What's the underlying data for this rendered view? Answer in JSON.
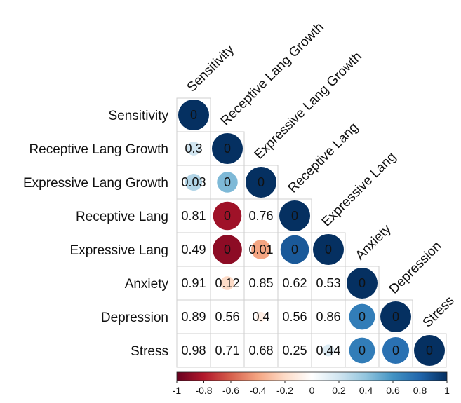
{
  "chart_data": {
    "type": "heatmap",
    "style": "lower-triangle correlation plot; circles for values near zero, numbers for larger values",
    "variables": [
      "Sensitivity",
      "Receptive Lang Growth",
      "Expressive Lang Growth",
      "Receptive Lang",
      "Expressive Lang",
      "Anxiety",
      "Depression",
      "Stress"
    ],
    "cells": [
      {
        "row": 0,
        "col": 0,
        "label": "0",
        "display": "circle",
        "value": 1.0
      },
      {
        "row": 1,
        "col": 0,
        "label": "0.3",
        "display": "circle-text",
        "value": 0.2
      },
      {
        "row": 1,
        "col": 1,
        "label": "0",
        "display": "circle",
        "value": 1.0
      },
      {
        "row": 2,
        "col": 0,
        "label": "0.03",
        "display": "circle-text",
        "value": 0.3
      },
      {
        "row": 2,
        "col": 1,
        "label": "0",
        "display": "circle",
        "value": 0.45
      },
      {
        "row": 2,
        "col": 2,
        "label": "0",
        "display": "circle",
        "value": 1.0
      },
      {
        "row": 3,
        "col": 0,
        "label": "0.81",
        "display": "text"
      },
      {
        "row": 3,
        "col": 1,
        "label": "0",
        "display": "circle",
        "value": -0.85
      },
      {
        "row": 3,
        "col": 2,
        "label": "0.76",
        "display": "text"
      },
      {
        "row": 3,
        "col": 3,
        "label": "0",
        "display": "circle",
        "value": 1.0
      },
      {
        "row": 4,
        "col": 0,
        "label": "0.49",
        "display": "text"
      },
      {
        "row": 4,
        "col": 1,
        "label": "0",
        "display": "circle",
        "value": -0.9
      },
      {
        "row": 4,
        "col": 2,
        "label": "0.01",
        "display": "circle-text",
        "value": -0.4
      },
      {
        "row": 4,
        "col": 3,
        "label": "0",
        "display": "circle",
        "value": 0.85
      },
      {
        "row": 4,
        "col": 4,
        "label": "0",
        "display": "circle",
        "value": 1.0
      },
      {
        "row": 5,
        "col": 0,
        "label": "0.91",
        "display": "text"
      },
      {
        "row": 5,
        "col": 1,
        "label": "0.12",
        "display": "circle-text",
        "value": -0.2
      },
      {
        "row": 5,
        "col": 2,
        "label": "0.85",
        "display": "text"
      },
      {
        "row": 5,
        "col": 3,
        "label": "0.62",
        "display": "text"
      },
      {
        "row": 5,
        "col": 4,
        "label": "0.53",
        "display": "text"
      },
      {
        "row": 5,
        "col": 5,
        "label": "0",
        "display": "circle",
        "value": 1.0
      },
      {
        "row": 6,
        "col": 0,
        "label": "0.89",
        "display": "text"
      },
      {
        "row": 6,
        "col": 1,
        "label": "0.56",
        "display": "text"
      },
      {
        "row": 6,
        "col": 2,
        "label": "0.4",
        "display": "circle-text",
        "value": -0.1
      },
      {
        "row": 6,
        "col": 3,
        "label": "0.56",
        "display": "text"
      },
      {
        "row": 6,
        "col": 4,
        "label": "0.86",
        "display": "text"
      },
      {
        "row": 6,
        "col": 5,
        "label": "0",
        "display": "circle",
        "value": 0.7
      },
      {
        "row": 6,
        "col": 6,
        "label": "0",
        "display": "circle",
        "value": 1.0
      },
      {
        "row": 7,
        "col": 0,
        "label": "0.98",
        "display": "text"
      },
      {
        "row": 7,
        "col": 1,
        "label": "0.71",
        "display": "text"
      },
      {
        "row": 7,
        "col": 2,
        "label": "0.68",
        "display": "text"
      },
      {
        "row": 7,
        "col": 3,
        "label": "0.25",
        "display": "text"
      },
      {
        "row": 7,
        "col": 4,
        "label": "0.44",
        "display": "circle-text",
        "value": 0.15
      },
      {
        "row": 7,
        "col": 5,
        "label": "0",
        "display": "circle",
        "value": 0.7
      },
      {
        "row": 7,
        "col": 6,
        "label": "0",
        "display": "circle",
        "value": 0.75
      },
      {
        "row": 7,
        "col": 7,
        "label": "0",
        "display": "circle",
        "value": 1.0
      }
    ],
    "colorbar": {
      "range": [
        -1,
        1
      ],
      "ticks": [
        "-1",
        "-0.8",
        "-0.6",
        "-0.4",
        "-0.2",
        "0",
        "0.2",
        "0.4",
        "0.6",
        "0.8",
        "1"
      ],
      "colors": [
        "#67001f",
        "#b2182b",
        "#d6604d",
        "#f4a582",
        "#fddbc7",
        "#ffffff",
        "#d1e5f0",
        "#92c5de",
        "#4393c3",
        "#2166ac",
        "#053061"
      ]
    }
  }
}
